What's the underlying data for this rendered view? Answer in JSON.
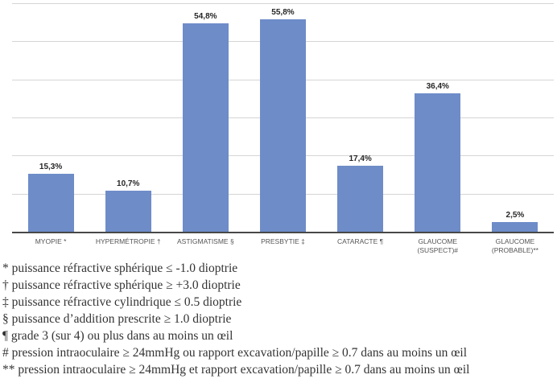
{
  "chart_data": {
    "type": "bar",
    "title": "",
    "xlabel": "",
    "ylabel": "",
    "categories": [
      "MYOPIE *",
      "HYPERMÉTROPIE †",
      "ASTIGMATISME §",
      "PRESBYTIE ‡",
      "CATARACTE ¶",
      "GLAUCOME (SUSPECT)#",
      "GLAUCOME (PROBABLE)**"
    ],
    "category_label_lines": [
      [
        "MYOPIE *"
      ],
      [
        "HYPERMÉTROPIE †"
      ],
      [
        "ASTIGMATISME §"
      ],
      [
        "PRESBYTIE ‡"
      ],
      [
        "CATARACTE ¶"
      ],
      [
        "GLAUCOME",
        "(SUSPECT)#"
      ],
      [
        "GLAUCOME",
        "(PROBABLE)**"
      ]
    ],
    "values": [
      15.3,
      10.7,
      54.8,
      55.8,
      17.4,
      36.4,
      2.5
    ],
    "value_labels": [
      "15,3%",
      "10,7%",
      "54,8%",
      "55,8%",
      "17,4%",
      "36,4%",
      "2,5%"
    ],
    "ylim": [
      0,
      60
    ],
    "gridline_step": 10,
    "grid": true,
    "legend": false,
    "bar_color": "#6e8cc8",
    "axis_color": "#484848",
    "gridline_color": "#d5d5d5",
    "value_label_color": "#262626",
    "category_label_color": "#555555"
  },
  "footnotes": [
    "* puissance réfractive sphérique ≤ -1.0 dioptrie",
    "† puissance réfractive sphérique ≥ +3.0 dioptrie",
    "‡ puissance réfractive cylindrique ≤ 0.5 dioptrie",
    "§ puissance d’addition prescrite ≥ 1.0 dioptrie",
    "¶ grade 3 (sur 4) ou plus dans au moins un œil",
    "# pression intraoculaire ≥ 24mmHg ou rapport excavation/papille ≥ 0.7 dans au moins un œil",
    "** pression intraoculaire ≥ 24mmHg et rapport excavation/papille ≥ 0.7 dans au moins un œil"
  ]
}
